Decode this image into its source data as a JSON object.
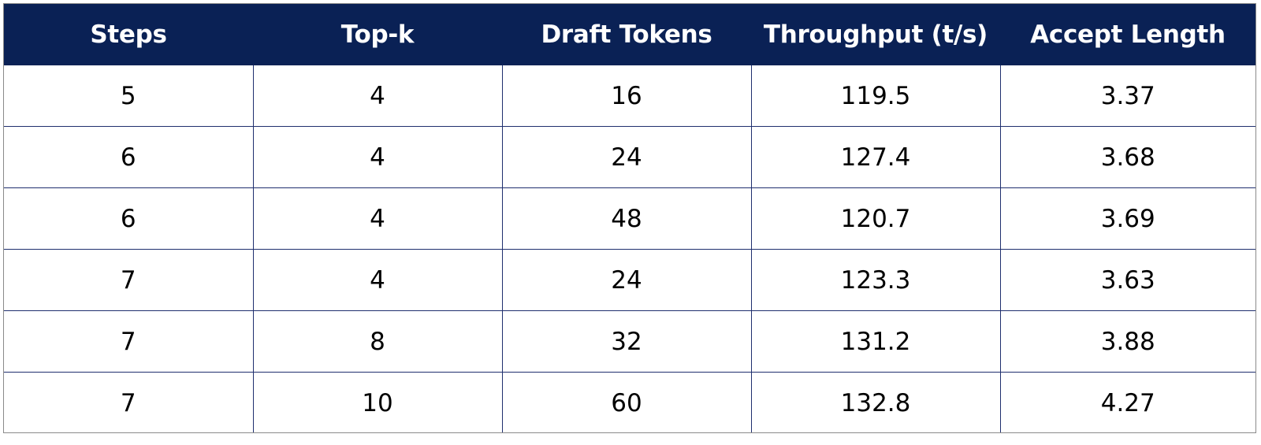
{
  "chart_data": {
    "type": "table",
    "columns": [
      "Steps",
      "Top-k",
      "Draft Tokens",
      "Throughput (t/s)",
      "Accept Length"
    ],
    "rows": [
      [
        "5",
        "4",
        "16",
        "119.5",
        "3.37"
      ],
      [
        "6",
        "4",
        "24",
        "127.4",
        "3.68"
      ],
      [
        "6",
        "4",
        "48",
        "120.7",
        "3.69"
      ],
      [
        "7",
        "4",
        "24",
        "123.3",
        "3.63"
      ],
      [
        "7",
        "8",
        "32",
        "131.2",
        "3.88"
      ],
      [
        "7",
        "10",
        "60",
        "132.8",
        "4.27"
      ]
    ]
  },
  "colors": {
    "header_background": "#0a2155",
    "header_text": "#ffffff",
    "grid_line": "#1f2f6e",
    "cell_text": "#000000"
  }
}
